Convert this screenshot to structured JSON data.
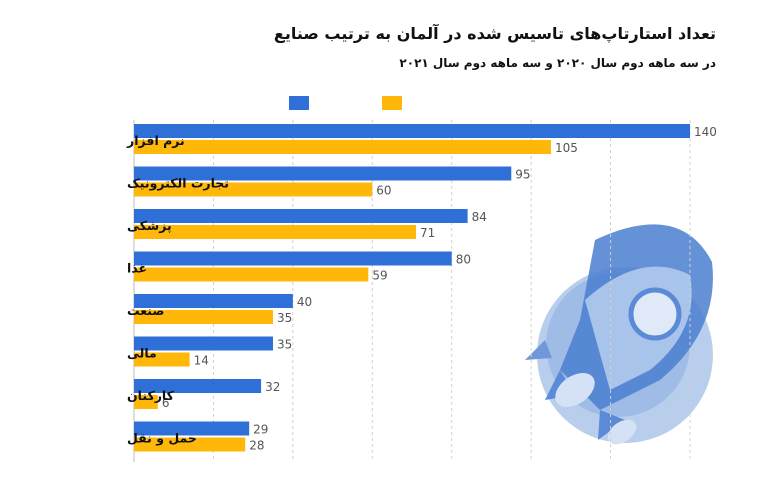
{
  "chart_data": {
    "type": "bar",
    "orientation": "horizontal",
    "title": "تعداد استارتاپ‌های تاسیس شده در آلمان به ترتیب صنایع",
    "subtitle": "در سه ماهه دوم سال ۲۰۲۰ و سه ماهه دوم سال ۲۰۲۱",
    "categories": [
      "نرم افزار",
      "تجارت الکترونیک",
      "پزشکی",
      "غذا",
      "صنعت",
      "مالی",
      "کارکنان",
      "حمل و نقل"
    ],
    "series": [
      {
        "values": [
          140,
          95,
          84,
          80,
          40,
          35,
          32,
          29
        ],
        "color": "#2f6fd8"
      },
      {
        "values": [
          105,
          60,
          71,
          59,
          35,
          14,
          6,
          28
        ],
        "color": "#ffb80a"
      }
    ],
    "xlim": [
      0,
      140
    ],
    "grid": true,
    "legend_position": "top"
  }
}
